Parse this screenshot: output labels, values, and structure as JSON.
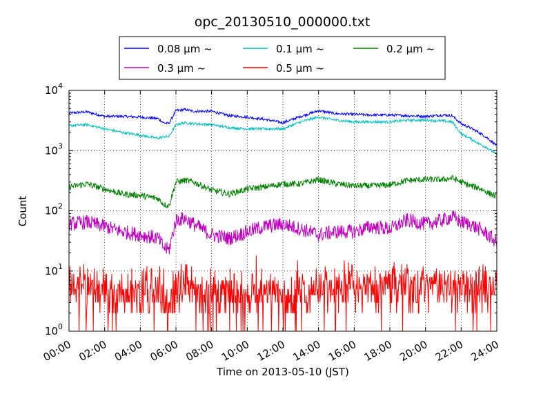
{
  "chart_data": {
    "type": "line",
    "title": "opc_20130510_000000.txt",
    "xlabel": "Time on 2013-05-10 (JST)",
    "ylabel": "Count",
    "x_ticks": [
      "00:00",
      "02:00",
      "04:00",
      "06:00",
      "08:00",
      "10:00",
      "12:00",
      "14:00",
      "16:00",
      "18:00",
      "20:00",
      "22:00",
      "24:00"
    ],
    "x_tick_hours": [
      0,
      2,
      4,
      6,
      8,
      10,
      12,
      14,
      16,
      18,
      20,
      22,
      24
    ],
    "xlim": [
      0,
      24
    ],
    "y_scale": "log",
    "ylim": [
      1,
      10000
    ],
    "y_ticks": [
      {
        "base": "10",
        "exp": "0",
        "value": 1
      },
      {
        "base": "10",
        "exp": "1",
        "value": 10
      },
      {
        "base": "10",
        "exp": "2",
        "value": 100
      },
      {
        "base": "10",
        "exp": "3",
        "value": 1000
      },
      {
        "base": "10",
        "exp": "4",
        "value": 10000
      }
    ],
    "grid": true,
    "legend_position": "top-center-outside",
    "series": [
      {
        "name": "0.08 μm ~",
        "color": "#0000ff",
        "noise": 0.05,
        "x": [
          0,
          1,
          2,
          3,
          4,
          5,
          5.3,
          5.6,
          6,
          6.5,
          7,
          8,
          9,
          10,
          11,
          12,
          13,
          14,
          15,
          16,
          17,
          18,
          19,
          20,
          21,
          21.5,
          22,
          22.5,
          23,
          23.5,
          24
        ],
        "y": [
          4200,
          4400,
          3700,
          3700,
          3600,
          3400,
          2900,
          2800,
          4600,
          4800,
          4500,
          4500,
          3800,
          3600,
          3300,
          2900,
          3700,
          4600,
          4100,
          4000,
          3900,
          3900,
          3800,
          3700,
          3900,
          3800,
          2800,
          2400,
          2000,
          1600,
          1200
        ]
      },
      {
        "name": "0.1 μm ~",
        "color": "#00bfbf",
        "noise": 0.05,
        "x": [
          0,
          1,
          2,
          3,
          4,
          5,
          5.3,
          5.6,
          6,
          6.5,
          7,
          8,
          9,
          10,
          11,
          12,
          13,
          14,
          15,
          16,
          17,
          18,
          19,
          20,
          21,
          21.5,
          22,
          22.5,
          23,
          23.5,
          24
        ],
        "y": [
          2600,
          2700,
          2300,
          2000,
          1800,
          1600,
          1700,
          1700,
          2700,
          2900,
          2800,
          2700,
          2400,
          2300,
          2300,
          2300,
          3000,
          3600,
          3200,
          3000,
          3000,
          3000,
          3200,
          3200,
          3100,
          3000,
          1900,
          1600,
          1300,
          1100,
          850
        ]
      },
      {
        "name": "0.2 μm ~",
        "color": "#008000",
        "noise": 0.12,
        "x": [
          0,
          1,
          2,
          3,
          4,
          5,
          5.3,
          5.6,
          6,
          6.5,
          7,
          8,
          9,
          10,
          11,
          12,
          13,
          14,
          15,
          16,
          17,
          18,
          19,
          20,
          21,
          21.5,
          22,
          22.5,
          23,
          23.5,
          24
        ],
        "y": [
          250,
          280,
          230,
          190,
          180,
          160,
          130,
          120,
          300,
          320,
          300,
          220,
          190,
          230,
          250,
          280,
          280,
          330,
          280,
          260,
          260,
          270,
          320,
          330,
          330,
          350,
          300,
          260,
          240,
          200,
          170
        ]
      },
      {
        "name": "0.3 μm ~",
        "color": "#bf00bf",
        "noise": 0.28,
        "x": [
          0,
          1,
          2,
          3,
          4,
          5,
          5.3,
          5.6,
          6,
          6.5,
          7,
          8,
          9,
          10,
          11,
          12,
          13,
          14,
          15,
          16,
          17,
          18,
          19,
          20,
          21,
          21.5,
          22,
          22.5,
          23,
          23.5,
          24
        ],
        "y": [
          60,
          65,
          55,
          45,
          40,
          35,
          25,
          22,
          70,
          75,
          60,
          40,
          35,
          45,
          55,
          60,
          50,
          40,
          45,
          45,
          55,
          50,
          70,
          60,
          70,
          80,
          65,
          60,
          50,
          40,
          30
        ]
      },
      {
        "name": "0.5 μm ~",
        "color": "#ff0000",
        "noise": 0.7,
        "x": [
          0,
          1,
          2,
          3,
          4,
          5,
          5.3,
          5.6,
          6,
          6.5,
          7,
          8,
          9,
          10,
          11,
          12,
          13,
          14,
          15,
          16,
          17,
          18,
          19,
          20,
          21,
          21.5,
          22,
          22.5,
          23,
          23.5,
          24
        ],
        "y": [
          5,
          6,
          5,
          4,
          4,
          4,
          3,
          3,
          6,
          6,
          5,
          4,
          4,
          4,
          4,
          4,
          4,
          5,
          5,
          5,
          5,
          6,
          6,
          6,
          6,
          6,
          5,
          5,
          5,
          5,
          5
        ]
      }
    ]
  }
}
